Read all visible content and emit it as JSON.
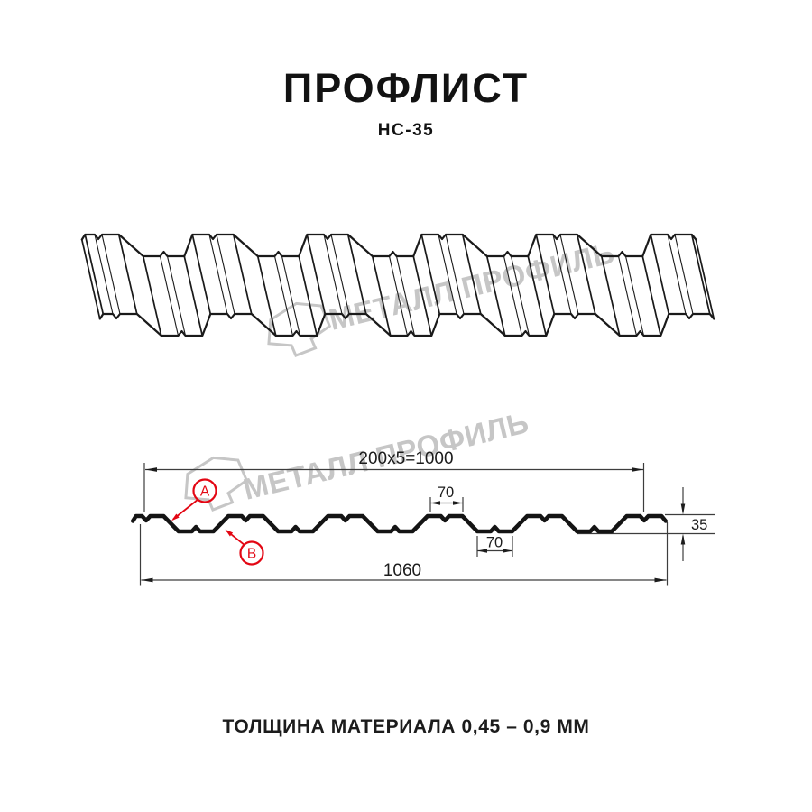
{
  "header": {
    "title": "ПРОФЛИСТ",
    "subtitle": "НС-35"
  },
  "caption": {
    "text": "ТОЛЩИНА МАТЕРИАЛА 0,45 – 0,9 ММ"
  },
  "watermark": {
    "text": "МЕТАЛЛ ПРОФИЛЬ",
    "color": "#c6c6c6"
  },
  "colors": {
    "line": "#1a1a1a",
    "profile_stroke": "#141414",
    "dimension": "#3d3d3d",
    "red_accent": "#e30613",
    "watermark_gray": "#c6c6c6",
    "background": "#ffffff"
  },
  "profile_spec": {
    "name": "НС-35",
    "pitch_label": "200x5=1000",
    "module_pitch_mm": 200,
    "modules": 5,
    "crest_label": "70",
    "crest_width_mm": 70,
    "valley_label": "70",
    "valley_width_mm": 70,
    "height_label": "35",
    "height_mm": 35,
    "overall_label": "1060",
    "overall_width_mm": 1060,
    "point_a": "A",
    "point_b": "B",
    "thickness_range": "0,45 – 0,9"
  }
}
